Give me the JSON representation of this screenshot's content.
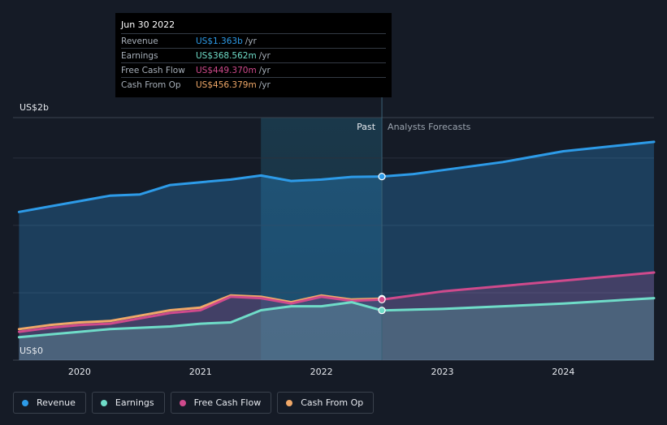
{
  "tooltip": {
    "date": "Jun 30 2022",
    "rows": [
      {
        "label": "Revenue",
        "value": "US$1.363b",
        "unit": "/yr",
        "color": "#2d9be8"
      },
      {
        "label": "Earnings",
        "value": "US$368.562m",
        "unit": "/yr",
        "color": "#6fdcc8"
      },
      {
        "label": "Free Cash Flow",
        "value": "US$449.370m",
        "unit": "/yr",
        "color": "#cf4a8c"
      },
      {
        "label": "Cash From Op",
        "value": "US$456.379m",
        "unit": "/yr",
        "color": "#f0a868"
      }
    ]
  },
  "legend": [
    {
      "label": "Revenue",
      "color": "#2d9be8"
    },
    {
      "label": "Earnings",
      "color": "#6fdcc8"
    },
    {
      "label": "Free Cash Flow",
      "color": "#cf4a8c"
    },
    {
      "label": "Cash From Op",
      "color": "#f0a868"
    }
  ],
  "chart_data": {
    "type": "line",
    "title": "",
    "xlabel": "",
    "ylabel": "",
    "y_top_label": "US$2b",
    "y_bottom_label": "US$0",
    "xlim": [
      2019.45,
      2024.75
    ],
    "ylim": [
      0,
      1.8
    ],
    "x_ticks": [
      2020,
      2021,
      2022,
      2023,
      2024
    ],
    "x_tick_labels": [
      "2020",
      "2021",
      "2022",
      "2023",
      "2024"
    ],
    "gridlines_y": [
      0.5,
      1.0,
      1.5
    ],
    "divider_x": 2022.5,
    "highlight_range": [
      2021.5,
      2022.5
    ],
    "past_label": "Past",
    "forecast_label": "Analysts Forecasts",
    "series": [
      {
        "name": "Revenue",
        "color": "#2d9be8",
        "fill": true,
        "points": [
          [
            2019.5,
            1.1
          ],
          [
            2019.75,
            1.14
          ],
          [
            2020.0,
            1.18
          ],
          [
            2020.25,
            1.22
          ],
          [
            2020.5,
            1.23
          ],
          [
            2020.75,
            1.3
          ],
          [
            2021.0,
            1.32
          ],
          [
            2021.25,
            1.34
          ],
          [
            2021.5,
            1.37
          ],
          [
            2021.75,
            1.33
          ],
          [
            2022.0,
            1.34
          ],
          [
            2022.25,
            1.36
          ],
          [
            2022.5,
            1.363
          ],
          [
            2022.75,
            1.38
          ],
          [
            2023.0,
            1.41
          ],
          [
            2023.5,
            1.47
          ],
          [
            2024.0,
            1.55
          ],
          [
            2024.75,
            1.62
          ]
        ]
      },
      {
        "name": "Cash From Op",
        "color": "#f0a868",
        "fill": false,
        "points": [
          [
            2019.5,
            0.23
          ],
          [
            2019.75,
            0.26
          ],
          [
            2020.0,
            0.28
          ],
          [
            2020.25,
            0.29
          ],
          [
            2020.5,
            0.33
          ],
          [
            2020.75,
            0.37
          ],
          [
            2021.0,
            0.39
          ],
          [
            2021.25,
            0.48
          ],
          [
            2021.5,
            0.47
          ],
          [
            2021.75,
            0.43
          ],
          [
            2022.0,
            0.48
          ],
          [
            2022.25,
            0.45
          ],
          [
            2022.5,
            0.456
          ]
        ]
      },
      {
        "name": "Free Cash Flow",
        "color": "#cf4a8c",
        "fill": true,
        "points": [
          [
            2019.5,
            0.21
          ],
          [
            2019.75,
            0.24
          ],
          [
            2020.0,
            0.26
          ],
          [
            2020.25,
            0.27
          ],
          [
            2020.5,
            0.31
          ],
          [
            2020.75,
            0.35
          ],
          [
            2021.0,
            0.37
          ],
          [
            2021.25,
            0.47
          ],
          [
            2021.5,
            0.46
          ],
          [
            2021.75,
            0.42
          ],
          [
            2022.0,
            0.47
          ],
          [
            2022.25,
            0.44
          ],
          [
            2022.5,
            0.449
          ],
          [
            2023.0,
            0.51
          ],
          [
            2023.5,
            0.55
          ],
          [
            2024.0,
            0.59
          ],
          [
            2024.75,
            0.65
          ]
        ]
      },
      {
        "name": "Earnings",
        "color": "#6fdcc8",
        "fill": true,
        "points": [
          [
            2019.5,
            0.17
          ],
          [
            2019.75,
            0.19
          ],
          [
            2020.0,
            0.21
          ],
          [
            2020.25,
            0.23
          ],
          [
            2020.5,
            0.24
          ],
          [
            2020.75,
            0.25
          ],
          [
            2021.0,
            0.27
          ],
          [
            2021.25,
            0.28
          ],
          [
            2021.5,
            0.37
          ],
          [
            2021.75,
            0.4
          ],
          [
            2022.0,
            0.4
          ],
          [
            2022.25,
            0.43
          ],
          [
            2022.5,
            0.369
          ],
          [
            2023.0,
            0.38
          ],
          [
            2023.5,
            0.4
          ],
          [
            2024.0,
            0.42
          ],
          [
            2024.75,
            0.46
          ]
        ]
      }
    ]
  }
}
